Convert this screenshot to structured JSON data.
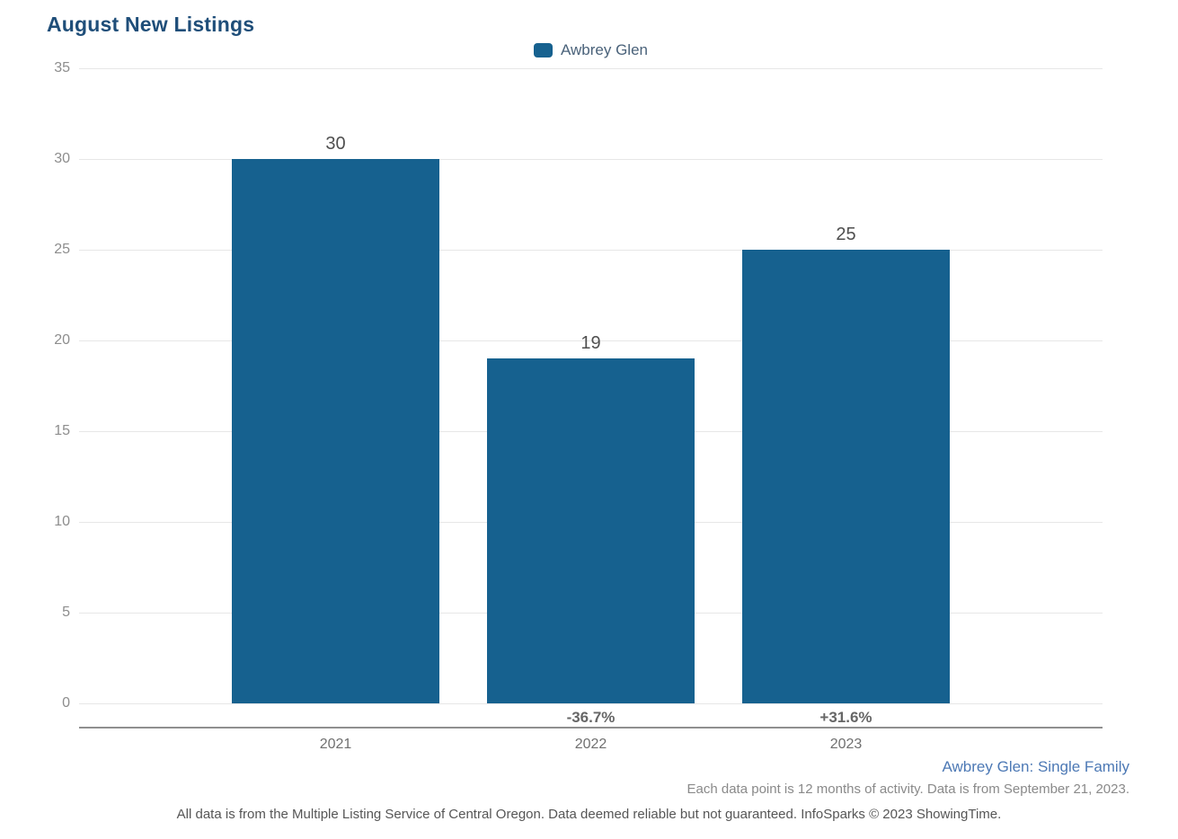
{
  "chart": {
    "title": "August New Listings"
  },
  "chart_data": {
    "type": "bar",
    "title": "August New Listings",
    "categories": [
      "2021",
      "2022",
      "2023"
    ],
    "values": [
      30,
      19,
      25
    ],
    "value_labels": [
      "30",
      "19",
      "25"
    ],
    "pct_changes": [
      "",
      "-36.7%",
      "+31.6%"
    ],
    "series": [
      {
        "name": "Awbrey Glen",
        "values": [
          30,
          19,
          25
        ]
      }
    ],
    "legend": [
      "Awbrey Glen"
    ],
    "legend_position": "top-center",
    "xlabel": "",
    "ylabel": "",
    "ylim": [
      0,
      35
    ],
    "yticks": [
      "35",
      "30",
      "25",
      "20",
      "15",
      "10",
      "5",
      "0"
    ],
    "grid": true
  },
  "colors": {
    "bar": "#16618f",
    "title": "#1f4e79",
    "legend_text": "#4a627a",
    "footnote_link": "#4d79b5",
    "gridline": "#e7e7e7",
    "axis_line": "#8f8f8f"
  },
  "footnotes": {
    "series_caption": "Awbrey Glen: Single Family",
    "data_caption": "Each data point is 12 months of activity. Data is from September 21, 2023.",
    "disclaimer": "All data is from the Multiple Listing Service of Central Oregon. Data deemed reliable but not guaranteed. InfoSparks © 2023 ShowingTime."
  }
}
